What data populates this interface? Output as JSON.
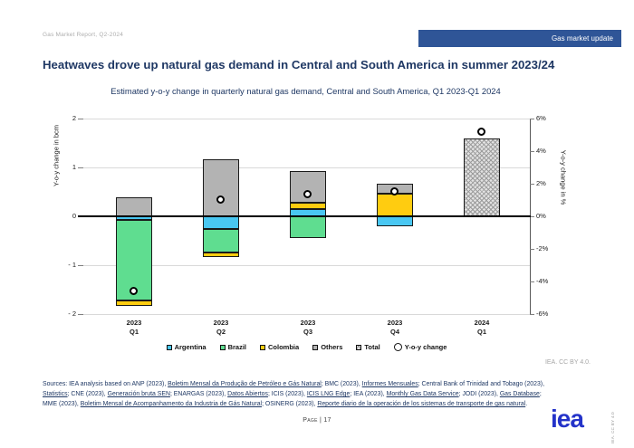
{
  "header": {
    "report_label": "Gas Market Report, Q2-2024",
    "badge_label": "Gas market update"
  },
  "title": "Heatwaves drove up natural gas demand in Central and South America in summer 2023/24",
  "subtitle": "Estimated y-o-y change in quarterly natural gas demand, Central and South America, Q1 2023-Q1 2024",
  "chart_data": {
    "type": "bar",
    "stacked": true,
    "categories": [
      [
        "2023",
        "Q1"
      ],
      [
        "2023",
        "Q2"
      ],
      [
        "2023",
        "Q3"
      ],
      [
        "2023",
        "Q4"
      ],
      [
        "2024",
        "Q1"
      ]
    ],
    "units_left": "bcm",
    "units_right": "%",
    "series": [
      {
        "name": "Argentina",
        "color": "#49c7f2",
        "values": [
          -0.08,
          -0.26,
          0.15,
          -0.2,
          0
        ]
      },
      {
        "name": "Brazil",
        "color": "#5fdd90",
        "values": [
          -1.64,
          -0.48,
          -0.45,
          0,
          0
        ]
      },
      {
        "name": "Colombia",
        "color": "#ffcc10",
        "values": [
          -0.12,
          -0.09,
          0.13,
          0.46,
          0
        ]
      },
      {
        "name": "Others",
        "color": "#b3b3b3",
        "values": [
          0.38,
          1.16,
          0.65,
          0.21,
          0
        ]
      },
      {
        "name": "Total",
        "color": "#e2e2e2",
        "hatch": true,
        "values": [
          0,
          0,
          0,
          0,
          1.59
        ]
      }
    ],
    "marker_series": {
      "name": "Y-o-y change",
      "units": "%",
      "values_pct": [
        -4.6,
        1.0,
        1.35,
        1.5,
        5.2
      ]
    },
    "left_axis": {
      "title": "Y-o-y change in bcm",
      "ticks": [
        "2",
        "1",
        "0",
        "- 1",
        "- 2"
      ],
      "range": [
        -2,
        2
      ]
    },
    "right_axis": {
      "title": "Y-o-y change in %",
      "ticks": [
        "6%",
        "4%",
        "2%",
        "0%",
        "-2%",
        "-4%",
        "-6%"
      ],
      "range": [
        -6,
        6
      ]
    },
    "grid": true,
    "legend_position": "bottom"
  },
  "legend": [
    {
      "label": "Argentina",
      "swatch": "square",
      "color": "#49c7f2"
    },
    {
      "label": "Brazil",
      "swatch": "square",
      "color": "#5fdd90"
    },
    {
      "label": "Colombia",
      "swatch": "square",
      "color": "#ffcc10"
    },
    {
      "label": "Others",
      "swatch": "square",
      "color": "#b3b3b3"
    },
    {
      "label": "Total",
      "swatch": "hatch",
      "color": "#e2e2e2"
    },
    {
      "label": "Y-o-y change",
      "swatch": "circle",
      "color": "#ffffff"
    }
  ],
  "license": "IEA. CC BY 4.0.",
  "sources": {
    "lines": [
      [
        {
          "t": "Sources: IEA analysis based on ANP (2023), "
        },
        {
          "t": "Boletim Mensal da Produção de Petróleo e Gás Natural",
          "u": true
        },
        {
          "t": "; BMC (2023), "
        },
        {
          "t": "Informes Mensuales",
          "u": true
        },
        {
          "t": "; Central Bank of Trinidad and Tobago (2023),"
        }
      ],
      [
        {
          "t": "Statistics",
          "u": true
        },
        {
          "t": "; CNE (2023), "
        },
        {
          "t": "Generación bruta SEN",
          "u": true
        },
        {
          "t": "; ENARGAS (2023), "
        },
        {
          "t": "Datos Abiertos",
          "u": true
        },
        {
          "t": "; ICIS (2023), "
        },
        {
          "t": "ICIS LNG Edge",
          "u": true
        },
        {
          "t": "; IEA (2023), "
        },
        {
          "t": "Monthly Gas Data Service",
          "u": true
        },
        {
          "t": "; JODI (2023), "
        },
        {
          "t": "Gas Database",
          "u": true
        },
        {
          "t": ";"
        }
      ],
      [
        {
          "t": "MME (2023), "
        },
        {
          "t": "Boletim Mensal de Acompanhamento da Industria de Gás Natural",
          "u": true
        },
        {
          "t": "; OSINERG (2023), "
        },
        {
          "t": "Reporte diario de la operación de los sistemas de transporte de gas natural",
          "u": true
        },
        {
          "t": "."
        }
      ]
    ]
  },
  "footer": {
    "page_label": "Page | 17",
    "logo_text": "iea",
    "vertical_license": "IEA. CC BY 4.0"
  },
  "colors": {
    "accent_navy": "#1f3864",
    "badge_blue": "#2f5597",
    "logo_blue": "#2433c9",
    "gridline": "#d9d9d9"
  }
}
